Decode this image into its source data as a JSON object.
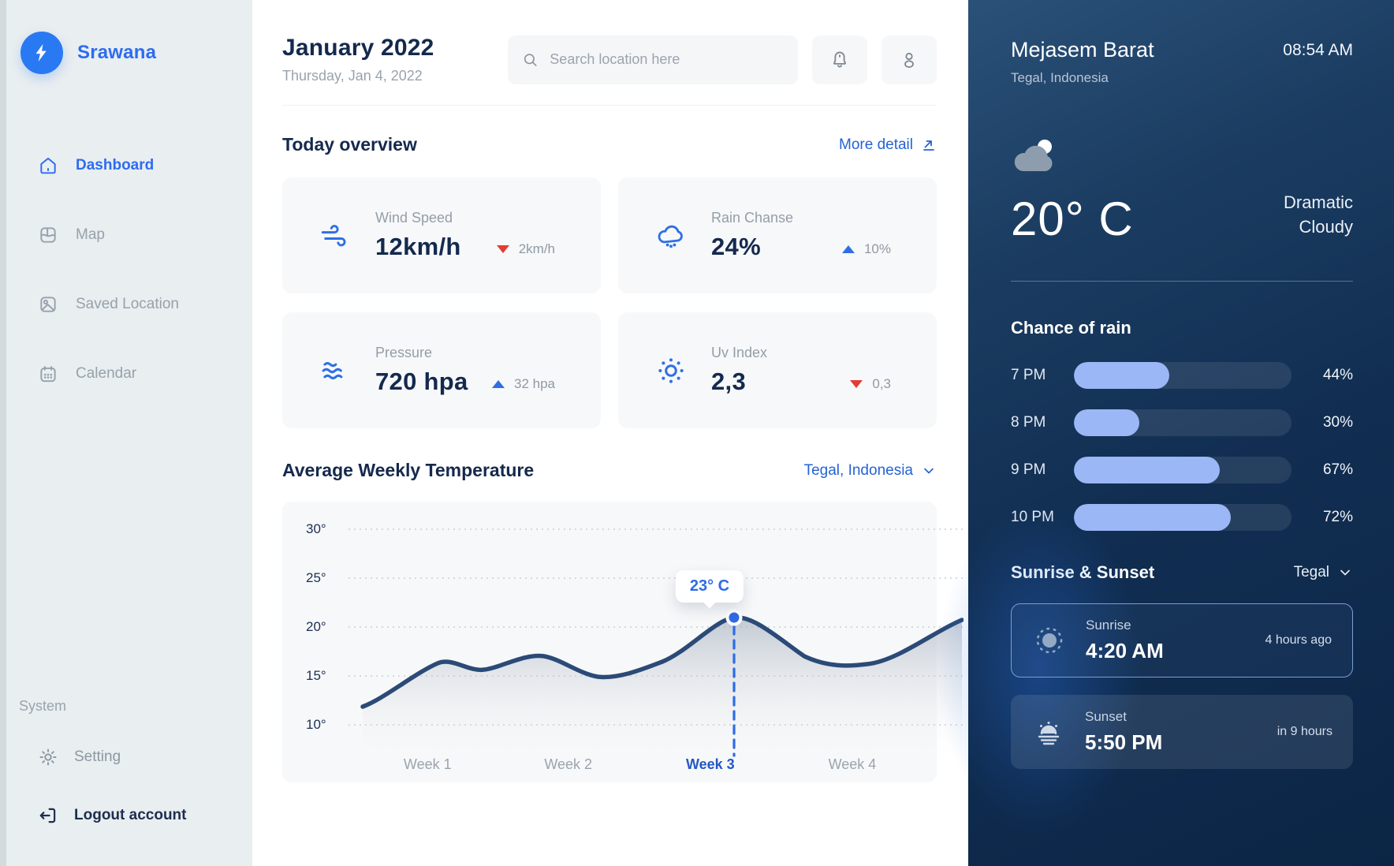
{
  "brand": {
    "name": "Srawana"
  },
  "sidebar": {
    "items": [
      {
        "label": "Dashboard",
        "icon": "home-icon",
        "active": true
      },
      {
        "label": "Map",
        "icon": "map-icon",
        "active": false
      },
      {
        "label": "Saved Location",
        "icon": "saved-location-icon",
        "active": false
      },
      {
        "label": "Calendar",
        "icon": "calendar-icon",
        "active": false
      }
    ],
    "system_label": "System",
    "system_items": [
      {
        "label": "Setting",
        "icon": "gear-icon"
      },
      {
        "label": "Logout account",
        "icon": "logout-icon"
      }
    ]
  },
  "header": {
    "title": "January 2022",
    "subtitle": "Thursday, Jan 4, 2022",
    "search_placeholder": "Search location here"
  },
  "overview": {
    "title": "Today overview",
    "more_link": "More detail",
    "cards": [
      {
        "label": "Wind Speed",
        "value": "12km/h",
        "delta": "2km/h",
        "trend": "down",
        "icon": "wind-icon"
      },
      {
        "label": "Rain Chanse",
        "value": "24%",
        "delta": "10%",
        "trend": "up",
        "icon": "rain-cloud-icon"
      },
      {
        "label": "Pressure",
        "value": "720 hpa",
        "delta": "32 hpa",
        "trend": "up",
        "icon": "pressure-waves-icon"
      },
      {
        "label": "Uv Index",
        "value": "2,3",
        "delta": "0,3",
        "trend": "down",
        "icon": "uv-sun-icon"
      }
    ]
  },
  "chart_data": {
    "type": "line",
    "title": "Average Weekly Temperature",
    "location_selector": "Tegal, Indonesia",
    "categories": [
      "Week 1",
      "Week 2",
      "Week 3",
      "Week 4"
    ],
    "series": [
      {
        "name": "Average temperature (°C)",
        "values": [
          16.5,
          17,
          23,
          21
        ]
      }
    ],
    "ylim": [
      10,
      30
    ],
    "yticks": [
      "30°",
      "25°",
      "20°",
      "15°",
      "10°"
    ],
    "grid": "dotted-horizontal",
    "selected_point": {
      "category": "Week 3",
      "label": "23° C"
    },
    "line_color": "#2b4a77",
    "accent_color": "#2e6be5"
  },
  "weather_panel": {
    "location": "Mejasem Barat",
    "region": "Tegal, Indonesia",
    "time": "08:54 AM",
    "temperature": "20° C",
    "condition_line1": "Dramatic",
    "condition_line2": "Cloudy",
    "rain": {
      "title": "Chance of rain",
      "rows": [
        {
          "time": "7 PM",
          "percent": "44%",
          "value": 44
        },
        {
          "time": "8 PM",
          "percent": "30%",
          "value": 30
        },
        {
          "time": "9 PM",
          "percent": "67%",
          "value": 67
        },
        {
          "time": "10 PM",
          "percent": "72%",
          "value": 72
        }
      ]
    },
    "sun": {
      "title": "Sunrise & Sunset",
      "selector": "Tegal",
      "sunrise": {
        "label": "Sunrise",
        "time": "4:20 AM",
        "note": "4 hours ago"
      },
      "sunset": {
        "label": "Sunset",
        "time": "5:50 PM",
        "note": "in 9 hours"
      }
    }
  },
  "colors": {
    "accent_blue": "#2d6cf0",
    "navy_text": "#14294e",
    "delta_red": "#e23c33",
    "delta_blue": "#2f6fe4",
    "bar_fill": "#9bb7f6",
    "panel_top": "#2a5178",
    "panel_bottom": "#0b2545",
    "sidebar_bg": "#e9eef0",
    "card_bg": "#f7f8f9"
  }
}
